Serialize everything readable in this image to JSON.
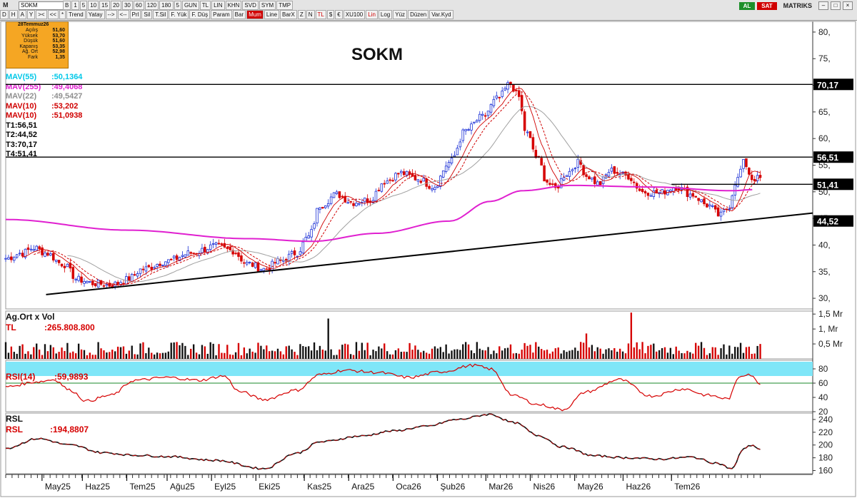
{
  "toolbar": {
    "logo": "M",
    "symbol": "SOKM",
    "row1": [
      "B",
      "1",
      "5",
      "10",
      "15",
      "20",
      "30",
      "60",
      "120",
      "180",
      "5",
      "GUN",
      "TL",
      "LIN",
      "KHN",
      "SVD",
      "SYM",
      "TMP"
    ],
    "row2": [
      "D",
      "H",
      "A",
      "Y",
      "><",
      "<<",
      "*",
      "Trend",
      "Yatay",
      "-->",
      "<--",
      "Prl",
      "Sil",
      "T.Sil",
      "F. Yük",
      "F. Düş",
      "Param",
      "Bar",
      "Mum",
      "Line",
      "BarX",
      "Z",
      "N",
      "TL",
      "$",
      "€",
      "XU100",
      "Lin",
      "Log",
      "Yüz",
      "Düzen",
      "Var.Kyd"
    ],
    "buy_label": "AL",
    "sell_label": "SAT",
    "brand": "MATRIKS"
  },
  "info_box": {
    "date": "28Temmuz26",
    "rows": [
      {
        "label": "Açılış",
        "value": "51,60"
      },
      {
        "label": "Yüksek",
        "value": "53,70"
      },
      {
        "label": "Düşük",
        "value": "51,60"
      },
      {
        "label": "Kapanış",
        "value": "53,35"
      },
      {
        "label": "Ağ. Ort",
        "value": "52,98"
      },
      {
        "label": "Fark",
        "value": "1,35"
      }
    ]
  },
  "colors": {
    "bull": "#1a2fd6",
    "bear": "#d60000",
    "mav55": "#00c8e8",
    "mav255": "#e020d0",
    "mav22": "#a0a0a0",
    "mav10": "#d00000",
    "rsi_band": "#7fe6f8"
  },
  "chart_data": [
    {
      "type": "candlestick",
      "title": "SOKM",
      "ylim": [
        28,
        82
      ],
      "y_ticks": [
        "80,",
        "75,",
        "70,",
        "65,",
        "60,",
        "55,",
        "50,",
        "45,",
        "40,",
        "35,",
        "30,"
      ],
      "indicator_labels": [
        {
          "name": "MAV(55)",
          "value": ":50,1364",
          "color": "#00c8e8"
        },
        {
          "name": "MAV(255)",
          "value": ":49,4068",
          "color": "#e020d0"
        },
        {
          "name": "MAV(22)",
          "value": ":49,5427",
          "color": "#909090"
        },
        {
          "name": "MAV(10)",
          "value": ":53,202",
          "color": "#d00000"
        },
        {
          "name": "MAV(10)",
          "value": ":51,0938",
          "color": "#d00000"
        },
        {
          "name": "T1",
          "value": ":56,51",
          "color": "#000000"
        },
        {
          "name": "T2",
          "value": ":44,52",
          "color": "#000000"
        },
        {
          "name": "T3",
          "value": ":70,17",
          "color": "#000000"
        },
        {
          "name": "T4",
          "value": ":51,41",
          "color": "#000000"
        }
      ],
      "horizontal_lines": [
        {
          "value": 70.17,
          "label": "70,17"
        },
        {
          "value": 56.51,
          "label": "56,51"
        },
        {
          "value": 51.41,
          "label": "51,41"
        }
      ],
      "trend_lines": [
        {
          "from": {
            "x": 0.05,
            "y": 30.7
          },
          "to": {
            "x": 1.0,
            "y": 46.0
          },
          "label": "44,52"
        },
        {
          "from": {
            "x": 0.825,
            "y": 52.0
          },
          "to": {
            "x": 0.91,
            "y": 52.0
          }
        }
      ],
      "price_anchors": [
        [
          0,
          37.5
        ],
        [
          0.02,
          38.5
        ],
        [
          0.035,
          39.5
        ],
        [
          0.05,
          38.5
        ],
        [
          0.07,
          36.5
        ],
        [
          0.09,
          33.5
        ],
        [
          0.11,
          32.8
        ],
        [
          0.13,
          32.5
        ],
        [
          0.15,
          33.5
        ],
        [
          0.17,
          35.5
        ],
        [
          0.2,
          37
        ],
        [
          0.23,
          38.5
        ],
        [
          0.26,
          39.8
        ],
        [
          0.28,
          39
        ],
        [
          0.3,
          36.5
        ],
        [
          0.32,
          35.5
        ],
        [
          0.34,
          37
        ],
        [
          0.36,
          38.5
        ],
        [
          0.375,
          41.5
        ],
        [
          0.39,
          47.5
        ],
        [
          0.41,
          49.5
        ],
        [
          0.43,
          48
        ],
        [
          0.45,
          48.5
        ],
        [
          0.47,
          52
        ],
        [
          0.49,
          53.5
        ],
        [
          0.51,
          52.5
        ],
        [
          0.53,
          51
        ],
        [
          0.55,
          55.5
        ],
        [
          0.57,
          61.5
        ],
        [
          0.59,
          64
        ],
        [
          0.61,
          67.5
        ],
        [
          0.625,
          70.3
        ],
        [
          0.635,
          68
        ],
        [
          0.645,
          61
        ],
        [
          0.66,
          56
        ],
        [
          0.67,
          52
        ],
        [
          0.68,
          50.5
        ],
        [
          0.695,
          53.5
        ],
        [
          0.71,
          55.5
        ],
        [
          0.72,
          53
        ],
        [
          0.735,
          51.5
        ],
        [
          0.75,
          54
        ],
        [
          0.77,
          53
        ],
        [
          0.79,
          50
        ],
        [
          0.81,
          49.8
        ],
        [
          0.83,
          51
        ],
        [
          0.85,
          49.5
        ],
        [
          0.87,
          47.5
        ],
        [
          0.885,
          45.5
        ],
        [
          0.895,
          47
        ],
        [
          0.905,
          52
        ],
        [
          0.915,
          55.5
        ],
        [
          0.925,
          52.5
        ]
      ],
      "mav255_anchors": [
        [
          0,
          44.8
        ],
        [
          0.15,
          42.8
        ],
        [
          0.3,
          41.2
        ],
        [
          0.38,
          40.7
        ],
        [
          0.46,
          42.2
        ],
        [
          0.55,
          44.5
        ],
        [
          0.6,
          48.2
        ],
        [
          0.64,
          50.2
        ],
        [
          0.7,
          51.2
        ],
        [
          0.8,
          50.9
        ],
        [
          0.9,
          50.2
        ],
        [
          0.925,
          50.4
        ]
      ]
    },
    {
      "type": "bar",
      "title": "Ag.Ort x Vol",
      "series_label": "TL",
      "value_label": ":265.808.800",
      "y_ticks": [
        "1,5 Mr",
        "1, Mr",
        "0,5 Mr"
      ],
      "ylim": [
        0,
        1.6
      ],
      "peaks": [
        [
          0.4,
          1.35
        ],
        [
          0.775,
          1.55
        ],
        [
          0.72,
          0.85
        ]
      ]
    },
    {
      "type": "line",
      "title": "RSI(14)",
      "value_label": ":59,9893",
      "y_ticks": [
        "80",
        "60",
        "40",
        "20"
      ],
      "ylim": [
        20,
        92
      ],
      "band": [
        70,
        90
      ],
      "reference": 60,
      "anchors": [
        [
          0,
          55
        ],
        [
          0.04,
          62
        ],
        [
          0.06,
          65
        ],
        [
          0.08,
          50
        ],
        [
          0.1,
          35
        ],
        [
          0.13,
          43
        ],
        [
          0.16,
          64
        ],
        [
          0.2,
          68
        ],
        [
          0.24,
          64
        ],
        [
          0.27,
          70
        ],
        [
          0.29,
          48
        ],
        [
          0.32,
          37
        ],
        [
          0.36,
          50
        ],
        [
          0.39,
          72
        ],
        [
          0.42,
          78
        ],
        [
          0.46,
          75
        ],
        [
          0.5,
          68
        ],
        [
          0.54,
          76
        ],
        [
          0.58,
          85
        ],
        [
          0.6,
          80
        ],
        [
          0.63,
          42
        ],
        [
          0.66,
          30
        ],
        [
          0.69,
          23
        ],
        [
          0.72,
          48
        ],
        [
          0.76,
          65
        ],
        [
          0.8,
          42
        ],
        [
          0.84,
          52
        ],
        [
          0.87,
          43
        ],
        [
          0.895,
          38
        ],
        [
          0.91,
          70
        ],
        [
          0.92,
          73
        ],
        [
          0.935,
          60
        ]
      ]
    },
    {
      "type": "line",
      "title": "RSL",
      "value_label": ":194,8807",
      "y_ticks": [
        "240",
        "220",
        "200",
        "180",
        "160"
      ],
      "ylim": [
        155,
        250
      ],
      "anchors": [
        [
          0,
          195
        ],
        [
          0.04,
          210
        ],
        [
          0.08,
          200
        ],
        [
          0.12,
          188
        ],
        [
          0.16,
          184
        ],
        [
          0.2,
          182
        ],
        [
          0.26,
          176
        ],
        [
          0.32,
          163
        ],
        [
          0.36,
          187
        ],
        [
          0.39,
          205
        ],
        [
          0.44,
          214
        ],
        [
          0.48,
          222
        ],
        [
          0.52,
          229
        ],
        [
          0.56,
          240
        ],
        [
          0.6,
          248
        ],
        [
          0.63,
          235
        ],
        [
          0.66,
          215
        ],
        [
          0.69,
          197
        ],
        [
          0.73,
          183
        ],
        [
          0.77,
          180
        ],
        [
          0.81,
          178
        ],
        [
          0.85,
          181
        ],
        [
          0.88,
          172
        ],
        [
          0.9,
          163
        ],
        [
          0.915,
          195
        ],
        [
          0.925,
          200
        ],
        [
          0.935,
          193
        ]
      ]
    },
    {
      "type": "axis",
      "x_labels": [
        "May25",
        "Haz25",
        "Tem25",
        "Ağu25",
        "Eyl25",
        "Eki25",
        "Kas25",
        "Ara25",
        "Oca26",
        "Şub26",
        "Mar26",
        "Nis26",
        "May26",
        "Haz26",
        "Tem26"
      ],
      "x_positions": [
        0.045,
        0.095,
        0.15,
        0.2,
        0.255,
        0.31,
        0.37,
        0.425,
        0.48,
        0.535,
        0.595,
        0.65,
        0.705,
        0.765,
        0.825
      ]
    }
  ]
}
